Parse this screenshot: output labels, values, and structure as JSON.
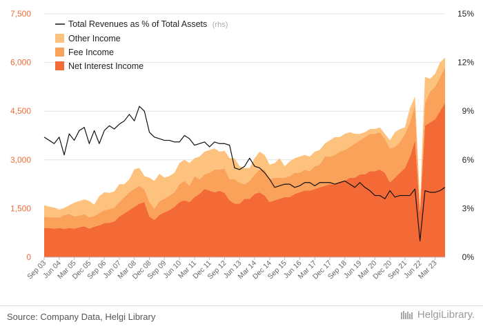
{
  "chart_data": {
    "type": "area",
    "stacked": true,
    "x": [
      "Sep 03",
      "Dec 03",
      "Mar 04",
      "Jun 04",
      "Sep 04",
      "Dec 04",
      "Mar 05",
      "Jun 05",
      "Sep 05",
      "Dec 05",
      "Mar 06",
      "Jun 06",
      "Sep 06",
      "Dec 06",
      "Mar 07",
      "Jun 07",
      "Sep 07",
      "Dec 07",
      "Mar 08",
      "Jun 08",
      "Sep 08",
      "Dec 08",
      "Mar 09",
      "Jun 09",
      "Sep 09",
      "Dec 09",
      "Mar 10",
      "Jun 10",
      "Sep 10",
      "Dec 10",
      "Mar 11",
      "Jun 11",
      "Sep 11",
      "Dec 11",
      "Mar 12",
      "Jun 12",
      "Sep 12",
      "Dec 12",
      "Mar 13",
      "Jun 13",
      "Sep 13",
      "Dec 13",
      "Mar 14",
      "Jun 14",
      "Sep 14",
      "Dec 14",
      "Mar 15",
      "Jun 15",
      "Sep 15",
      "Dec 15",
      "Mar 16",
      "Jun 16",
      "Sep 16",
      "Dec 16",
      "Mar 17",
      "Jun 17",
      "Sep 17",
      "Dec 17",
      "Mar 18",
      "Jun 18",
      "Sep 18",
      "Dec 18",
      "Mar 19",
      "Jun 19",
      "Sep 19",
      "Dec 19",
      "Mar 20",
      "Jun 20",
      "Sep 20",
      "Dec 20",
      "Mar 21",
      "Jun 21",
      "Sep 21",
      "Dec 21",
      "Mar 22",
      "Jun 22",
      "Sep 22",
      "Dec 22",
      "Mar 23",
      "Jun 23",
      "Sep 23"
    ],
    "x_tick_labels": [
      "Sep 03",
      "Jun 04",
      "Mar 05",
      "Dec 05",
      "Sep 06",
      "Jun 07",
      "Mar 08",
      "Dec 08",
      "Sep 09",
      "Jun 10",
      "Mar 11",
      "Dec 11",
      "Sep 12",
      "Jun 13",
      "Mar 14",
      "Dec 14",
      "Sep 15",
      "Jun 16",
      "Mar 17",
      "Dec 17",
      "Sep 18",
      "Jun 19",
      "Mar 20",
      "Dec 20",
      "Sep 21",
      "Jun 22",
      "Mar 23"
    ],
    "series": [
      {
        "name": "Net Interest Income",
        "axis": "left",
        "color": "#f46a36",
        "values": [
          900,
          900,
          880,
          900,
          870,
          900,
          880,
          920,
          950,
          880,
          940,
          980,
          1050,
          1060,
          1100,
          1250,
          1350,
          1450,
          1550,
          1650,
          1700,
          1250,
          1150,
          1300,
          1380,
          1450,
          1550,
          1700,
          1750,
          1700,
          1850,
          1950,
          2100,
          2050,
          2000,
          2050,
          1980,
          1750,
          1650,
          1650,
          1800,
          1800,
          1950,
          2000,
          1900,
          1700,
          1750,
          1800,
          1850,
          1850,
          1950,
          2000,
          2050,
          2050,
          2100,
          2150,
          2200,
          2250,
          2250,
          2300,
          2350,
          2450,
          2450,
          2550,
          2550,
          2650,
          2650,
          2700,
          2600,
          2300,
          2450,
          2600,
          2750,
          3100,
          3600,
          1400,
          4050,
          4150,
          4250,
          4500,
          4750
        ]
      },
      {
        "name": "Fee Income",
        "axis": "left",
        "color": "#fba25a",
        "values": [
          350,
          330,
          350,
          320,
          430,
          430,
          380,
          360,
          380,
          350,
          330,
          380,
          400,
          420,
          430,
          450,
          500,
          550,
          560,
          550,
          400,
          450,
          350,
          420,
          420,
          450,
          450,
          550,
          600,
          500,
          650,
          450,
          450,
          550,
          700,
          650,
          750,
          650,
          750,
          650,
          450,
          550,
          600,
          700,
          800,
          700,
          700,
          650,
          600,
          650,
          650,
          600,
          650,
          600,
          700,
          700,
          900,
          850,
          900,
          950,
          950,
          950,
          1050,
          1050,
          1150,
          1150,
          1150,
          1150,
          1050,
          1050,
          950,
          950,
          1050,
          1050,
          1100,
          0,
          700,
          950,
          1000,
          1050,
          1100
        ]
      },
      {
        "name": "Other Income",
        "axis": "left",
        "color": "#fcc27e",
        "values": [
          350,
          330,
          300,
          240,
          220,
          270,
          420,
          450,
          450,
          500,
          350,
          520,
          550,
          500,
          500,
          550,
          400,
          400,
          600,
          550,
          400,
          750,
          850,
          850,
          650,
          600,
          600,
          650,
          650,
          700,
          550,
          700,
          700,
          700,
          650,
          550,
          550,
          650,
          650,
          500,
          500,
          400,
          500,
          550,
          450,
          450,
          450,
          600,
          350,
          450,
          450,
          500,
          450,
          450,
          450,
          450,
          400,
          500,
          550,
          450,
          500,
          450,
          300,
          200,
          150,
          150,
          150,
          150,
          150,
          250,
          450,
          400,
          200,
          450,
          250,
          300,
          800,
          400,
          400,
          450,
          300
        ]
      },
      {
        "name": "Total Revenues as % of Total Assets",
        "axis": "right",
        "color": "#111111",
        "values": [
          7.4,
          7.2,
          7.0,
          7.4,
          6.3,
          7.6,
          7.2,
          7.8,
          8.0,
          7.0,
          7.8,
          7.0,
          7.8,
          8.1,
          7.9,
          8.2,
          8.4,
          8.8,
          8.4,
          9.3,
          9.0,
          7.7,
          7.4,
          7.3,
          7.2,
          7.2,
          7.1,
          7.1,
          7.5,
          7.3,
          6.9,
          7.0,
          7.1,
          6.8,
          7.1,
          7.0,
          7.0,
          6.9,
          5.5,
          5.4,
          5.6,
          6.1,
          5.6,
          5.5,
          5.2,
          4.8,
          4.3,
          4.4,
          4.5,
          4.5,
          4.3,
          4.4,
          4.6,
          4.6,
          4.4,
          4.6,
          4.6,
          4.6,
          4.5,
          4.6,
          4.7,
          4.5,
          4.3,
          4.6,
          4.3,
          4.1,
          3.8,
          3.8,
          3.6,
          4.1,
          3.7,
          3.8,
          3.8,
          3.8,
          4.2,
          1.0,
          4.1,
          4.0,
          4.0,
          4.1,
          4.3
        ]
      }
    ],
    "ylim_left": [
      0,
      7500
    ],
    "yticks_left": [
      "0",
      "1,500",
      "3,000",
      "4,500",
      "6,000",
      "7,500"
    ],
    "ylim_right": [
      0,
      15
    ],
    "yticks_right": [
      "0%",
      "3%",
      "6%",
      "9%",
      "12%",
      "15%"
    ],
    "grid": true,
    "legend_position": "top-left",
    "legend": {
      "line_label": "Total Revenues as % of Total Assets",
      "rhs_tag": "(rhs)",
      "items": [
        "Other Income",
        "Fee Income",
        "Net Interest Income"
      ]
    }
  },
  "footer": {
    "source": "Source: Company Data, Helgi Library",
    "brand": "HelgiLibrary."
  }
}
